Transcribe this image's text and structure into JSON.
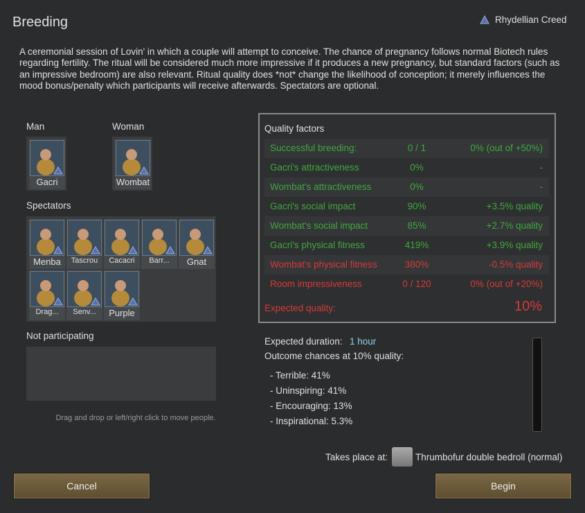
{
  "title": "Breeding",
  "ideology": "Rhydellian Creed",
  "description": "A ceremonial session of Lovin' in which a couple will attempt to conceive. The chance of pregnancy follows normal Biotech rules regarding fertility. The ritual will be considered much more impressive if it produces a new pregnancy, but standard factors (such as an impressive bedroom) are also relevant. Ritual quality does *not* change the likelihood of conception; it merely influences the mood bonus/penalty which participants will receive afterwards. Spectators are optional.",
  "roles": [
    {
      "label": "Man",
      "pawns": [
        "Gacri"
      ]
    },
    {
      "label": "Woman",
      "pawns": [
        "Wombat"
      ]
    }
  ],
  "spectators": {
    "label": "Spectators",
    "pawns": [
      "Menba",
      "Tascrou",
      "Cacacri",
      "Barr...",
      "Gnat",
      "Drag...",
      "Senv...",
      "Purple"
    ]
  },
  "not_participating": {
    "label": "Not participating"
  },
  "hint": "Drag and drop or left/right click to move people.",
  "quality": {
    "title": "Quality factors",
    "rows": [
      {
        "label": "Successful breeding:",
        "value": "0 / 1",
        "effect": "0% (out of +50%)",
        "color": "#3fa83f"
      },
      {
        "label": "Gacri's attractiveness",
        "value": "0%",
        "effect": "-",
        "color": "#3fa83f"
      },
      {
        "label": "Wombat's attractiveness",
        "value": "0%",
        "effect": "-",
        "color": "#3fa83f"
      },
      {
        "label": "Gacri's social impact",
        "value": "90%",
        "effect": "+3.5% quality",
        "color": "#3fa83f"
      },
      {
        "label": "Wombat's social impact",
        "value": "85%",
        "effect": "+2.7% quality",
        "color": "#3fa83f"
      },
      {
        "label": "Gacri's physical fitness",
        "value": "419%",
        "effect": "+3.9% quality",
        "color": "#3fa83f"
      },
      {
        "label": "Wombat's physical fitness",
        "value": "380%",
        "effect": "-0.5% quality",
        "color": "#d63a3a"
      },
      {
        "label": "Room impressiveness",
        "value": "0 / 120",
        "effect": "0% (out of +20%)",
        "color": "#d63a3a"
      }
    ],
    "expected_label": "Expected quality:",
    "expected_value": "10%",
    "expected_color": "#d63a3a"
  },
  "duration": {
    "label": "Expected duration:",
    "value": "1 hour"
  },
  "outcome_title": "Outcome chances at 10% quality:",
  "outcomes": [
    "- Terrible: 41%",
    "- Uninspiring: 41%",
    "- Encouraging: 13%",
    "- Inspirational: 5.3%"
  ],
  "location": {
    "label": "Takes place at:",
    "value": "Thrumbofur double bedroll (normal)"
  },
  "buttons": {
    "cancel": "Cancel",
    "begin": "Begin"
  }
}
